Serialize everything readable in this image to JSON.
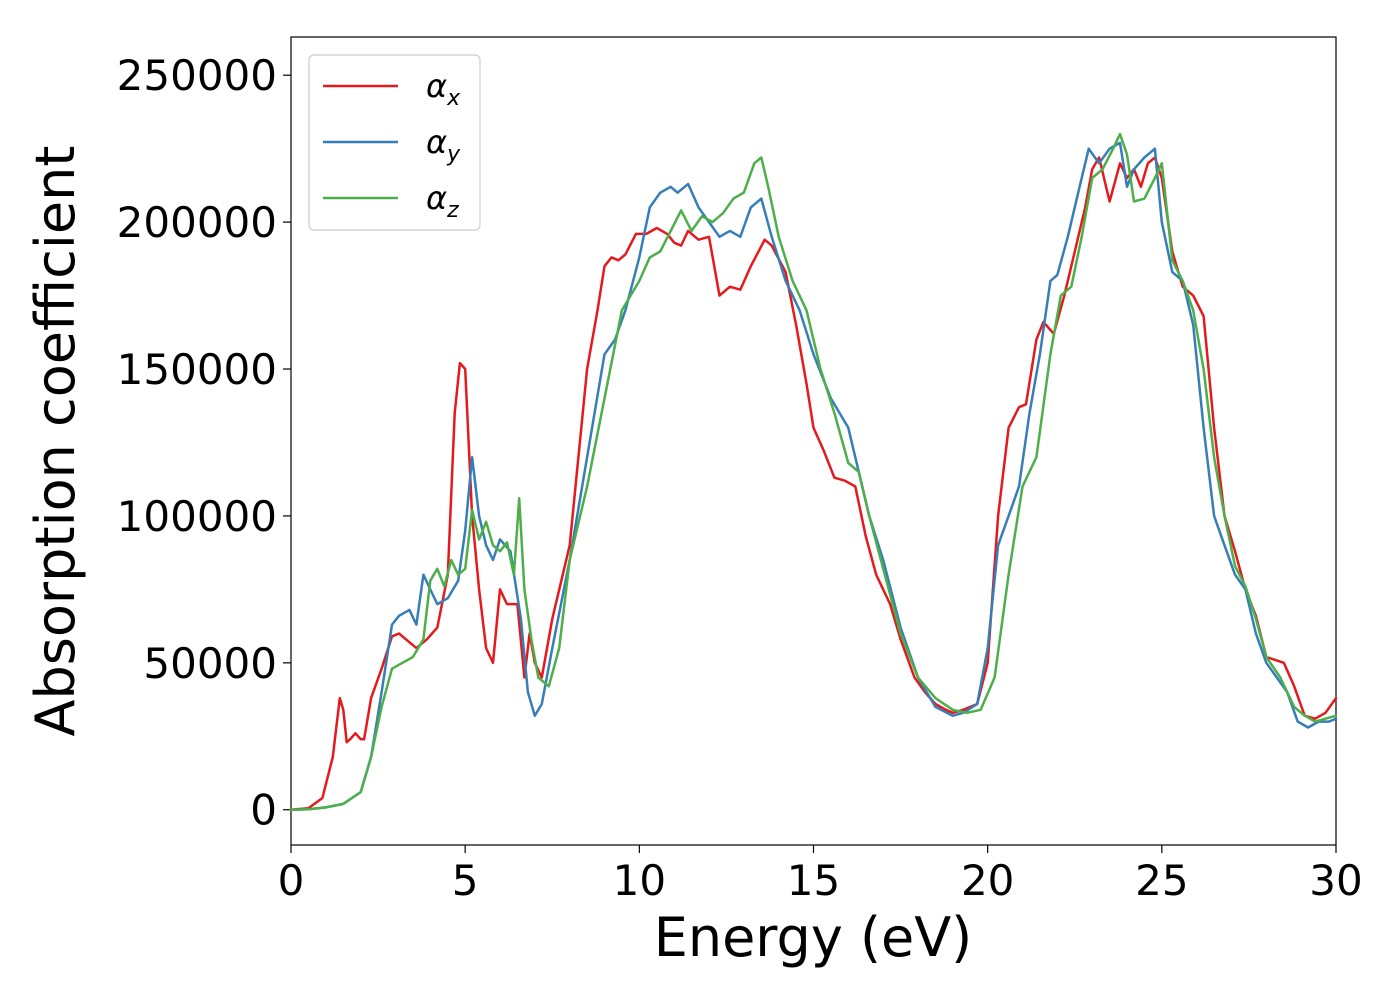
{
  "chart_data": {
    "type": "line",
    "title": "",
    "xlabel": "Energy (eV)",
    "ylabel": "Absorption coefficient",
    "xlim": [
      0,
      30
    ],
    "ylim": [
      -12000,
      263000
    ],
    "xticks": [
      0,
      5,
      10,
      15,
      20,
      25,
      30
    ],
    "yticks": [
      0,
      50000,
      100000,
      150000,
      200000,
      250000
    ],
    "grid": false,
    "legend_position": "top-left",
    "series": [
      {
        "name": "α_x",
        "legend_main": "α",
        "legend_sub": "x",
        "color": "#e41a1c",
        "x": [
          0,
          0.5,
          0.9,
          1.2,
          1.4,
          1.5,
          1.6,
          1.7,
          1.85,
          2.0,
          2.1,
          2.3,
          2.6,
          2.9,
          3.1,
          3.3,
          3.6,
          3.9,
          4.2,
          4.5,
          4.7,
          4.85,
          5.0,
          5.2,
          5.4,
          5.6,
          5.8,
          6.0,
          6.2,
          6.5,
          6.7,
          6.85,
          7.0,
          7.2,
          7.5,
          8.0,
          8.5,
          8.8,
          9.0,
          9.2,
          9.4,
          9.6,
          9.9,
          10.2,
          10.5,
          10.8,
          11.0,
          11.2,
          11.4,
          11.7,
          12.0,
          12.3,
          12.6,
          12.9,
          13.2,
          13.6,
          13.8,
          14.2,
          14.5,
          14.8,
          15.0,
          15.3,
          15.6,
          15.9,
          16.2,
          16.5,
          16.8,
          17.2,
          17.5,
          17.9,
          18.2,
          18.5,
          18.8,
          19.0,
          19.3,
          19.7,
          20.0,
          20.3,
          20.6,
          20.9,
          21.1,
          21.4,
          21.6,
          21.9,
          22.2,
          22.5,
          22.8,
          23.0,
          23.2,
          23.5,
          23.8,
          24.0,
          24.2,
          24.4,
          24.6,
          24.8,
          25.0,
          25.3,
          25.6,
          25.9,
          26.2,
          26.5,
          26.8,
          27.1,
          27.4,
          27.7,
          28.0,
          28.5,
          28.8,
          29.1,
          29.4,
          29.7,
          30.0
        ],
        "y": [
          0,
          500,
          4000,
          18000,
          38000,
          34000,
          23000,
          24000,
          26000,
          24000,
          24000,
          38000,
          48000,
          59000,
          60000,
          58000,
          55000,
          58000,
          62000,
          80000,
          135000,
          152000,
          150000,
          100000,
          75000,
          55000,
          50000,
          75000,
          70000,
          70000,
          45000,
          60000,
          50000,
          45000,
          65000,
          90000,
          150000,
          170000,
          185000,
          188000,
          187000,
          189000,
          196000,
          196000,
          198000,
          196000,
          193000,
          192000,
          197000,
          194000,
          195000,
          175000,
          178000,
          177000,
          185000,
          194000,
          192000,
          183000,
          165000,
          145000,
          130000,
          122000,
          113000,
          112000,
          110000,
          93000,
          80000,
          70000,
          58000,
          45000,
          40000,
          36000,
          34000,
          33000,
          34000,
          36000,
          50000,
          100000,
          130000,
          137000,
          138000,
          160000,
          166000,
          162000,
          175000,
          190000,
          205000,
          218000,
          222000,
          207000,
          220000,
          215000,
          218000,
          212000,
          220000,
          222000,
          215000,
          190000,
          178000,
          175000,
          168000,
          130000,
          100000,
          88000,
          75000,
          66000,
          52000,
          50000,
          42000,
          32000,
          31000,
          33000,
          38000
        ]
      },
      {
        "name": "α_y",
        "legend_main": "α",
        "legend_sub": "y",
        "color": "#377eb8",
        "x": [
          0,
          0.5,
          1.0,
          1.5,
          2.0,
          2.3,
          2.6,
          2.9,
          3.1,
          3.4,
          3.6,
          3.8,
          4.0,
          4.2,
          4.5,
          4.8,
          5.0,
          5.2,
          5.4,
          5.6,
          5.8,
          6.0,
          6.3,
          6.6,
          6.8,
          7.0,
          7.2,
          7.5,
          8.0,
          8.5,
          9.0,
          9.3,
          9.6,
          10.0,
          10.3,
          10.6,
          10.9,
          11.1,
          11.4,
          11.7,
          12.0,
          12.3,
          12.6,
          12.9,
          13.2,
          13.5,
          13.8,
          14.2,
          14.6,
          15.0,
          15.5,
          16.0,
          16.3,
          16.6,
          17.0,
          17.5,
          18.0,
          18.5,
          19.0,
          19.3,
          19.7,
          20.0,
          20.3,
          20.6,
          20.9,
          21.2,
          21.5,
          21.8,
          22.0,
          22.3,
          22.6,
          22.9,
          23.2,
          23.5,
          23.8,
          24.0,
          24.2,
          24.5,
          24.8,
          25.0,
          25.3,
          25.6,
          25.9,
          26.2,
          26.5,
          26.8,
          27.1,
          27.4,
          27.7,
          28.0,
          28.3,
          28.6,
          28.9,
          29.2,
          29.5,
          29.8,
          30.0
        ],
        "y": [
          0,
          200,
          800,
          2000,
          6000,
          18000,
          40000,
          63000,
          66000,
          68000,
          63000,
          80000,
          75000,
          70000,
          72000,
          78000,
          95000,
          120000,
          100000,
          90000,
          85000,
          92000,
          88000,
          65000,
          40000,
          32000,
          36000,
          55000,
          85000,
          120000,
          155000,
          160000,
          170000,
          188000,
          205000,
          210000,
          212000,
          210000,
          213000,
          205000,
          200000,
          195000,
          197000,
          195000,
          205000,
          208000,
          195000,
          180000,
          170000,
          155000,
          140000,
          130000,
          115000,
          100000,
          85000,
          62000,
          45000,
          35000,
          32000,
          33000,
          36000,
          55000,
          90000,
          100000,
          110000,
          135000,
          155000,
          180000,
          182000,
          195000,
          210000,
          225000,
          220000,
          225000,
          227000,
          212000,
          218000,
          222000,
          225000,
          200000,
          183000,
          180000,
          165000,
          130000,
          100000,
          90000,
          80000,
          75000,
          60000,
          50000,
          45000,
          40000,
          30000,
          28000,
          30000,
          30000,
          31000
        ]
      },
      {
        "name": "α_z",
        "legend_main": "α",
        "legend_sub": "z",
        "color": "#4daf4a",
        "x": [
          0,
          0.5,
          1.0,
          1.5,
          2.0,
          2.3,
          2.6,
          2.9,
          3.2,
          3.5,
          3.8,
          4.0,
          4.2,
          4.4,
          4.6,
          4.8,
          5.0,
          5.2,
          5.4,
          5.6,
          5.8,
          6.0,
          6.2,
          6.4,
          6.55,
          6.7,
          6.9,
          7.1,
          7.4,
          7.7,
          8.0,
          8.5,
          9.0,
          9.5,
          10.0,
          10.3,
          10.6,
          10.9,
          11.2,
          11.5,
          11.8,
          12.1,
          12.4,
          12.7,
          13.0,
          13.3,
          13.5,
          13.7,
          14.0,
          14.4,
          14.8,
          15.2,
          15.6,
          16.0,
          16.3,
          16.6,
          17.0,
          17.5,
          18.0,
          18.5,
          19.0,
          19.4,
          19.8,
          20.2,
          20.6,
          21.0,
          21.4,
          21.8,
          22.1,
          22.4,
          22.7,
          23.0,
          23.3,
          23.6,
          23.8,
          24.0,
          24.2,
          24.5,
          24.8,
          25.0,
          25.3,
          25.6,
          25.9,
          26.2,
          26.5,
          26.8,
          27.1,
          27.4,
          27.7,
          28.0,
          28.4,
          28.8,
          29.1,
          29.4,
          29.7,
          30.0
        ],
        "y": [
          0,
          200,
          800,
          2000,
          6000,
          18000,
          35000,
          48000,
          50000,
          52000,
          58000,
          78000,
          82000,
          76000,
          85000,
          80000,
          82000,
          102000,
          92000,
          98000,
          90000,
          88000,
          91000,
          80000,
          106000,
          75000,
          58000,
          45000,
          42000,
          55000,
          85000,
          110000,
          140000,
          170000,
          180000,
          188000,
          190000,
          197000,
          204000,
          197000,
          202000,
          200000,
          203000,
          208000,
          210000,
          220000,
          222000,
          212000,
          195000,
          180000,
          170000,
          150000,
          135000,
          118000,
          115000,
          100000,
          82000,
          60000,
          45000,
          38000,
          34000,
          33000,
          34000,
          45000,
          80000,
          110000,
          120000,
          155000,
          175000,
          178000,
          195000,
          215000,
          218000,
          225000,
          230000,
          223000,
          207000,
          208000,
          215000,
          220000,
          187000,
          180000,
          170000,
          150000,
          120000,
          100000,
          83000,
          76000,
          65000,
          52000,
          45000,
          35000,
          32000,
          30000,
          31000,
          32000
        ]
      }
    ]
  }
}
